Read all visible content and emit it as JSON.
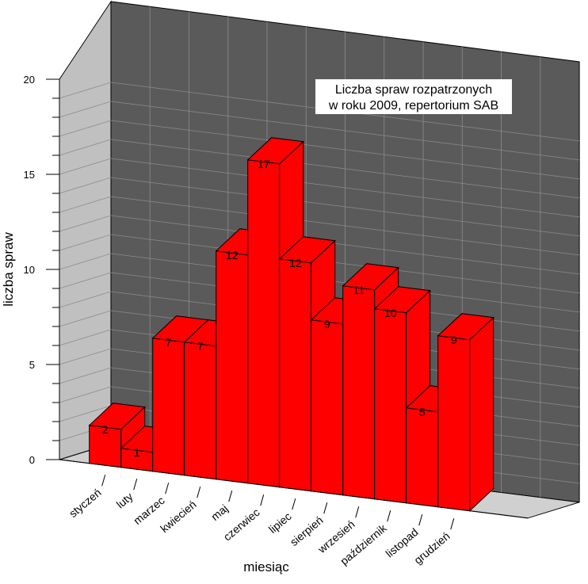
{
  "chart_data": {
    "type": "bar",
    "title_lines": [
      "Liczba spraw rozpatrzonych",
      "w roku 2009, repertorium SAB"
    ],
    "xlabel": "miesiąc",
    "ylabel": "liczba spraw",
    "ylim": [
      0,
      20
    ],
    "yticks": [
      0,
      5,
      10,
      15,
      20
    ],
    "categories": [
      "styczeń",
      "luty",
      "marzec",
      "kwiecień",
      "maj",
      "czerwiec",
      "lipiec",
      "sierpień",
      "wrzesień",
      "październik",
      "listopad",
      "grudzień"
    ],
    "values": [
      2,
      1,
      7,
      7,
      12,
      17,
      12,
      9,
      11,
      10,
      5,
      9
    ],
    "colors": {
      "bar_front": "#ff0000",
      "bar_side": "#ff0000",
      "bar_edge": "#000000",
      "back_wall": "#5a5a5a",
      "side_wall": "#c0c0c0",
      "floor": "#d0d0d0",
      "grid": "#8c8c8c"
    }
  }
}
